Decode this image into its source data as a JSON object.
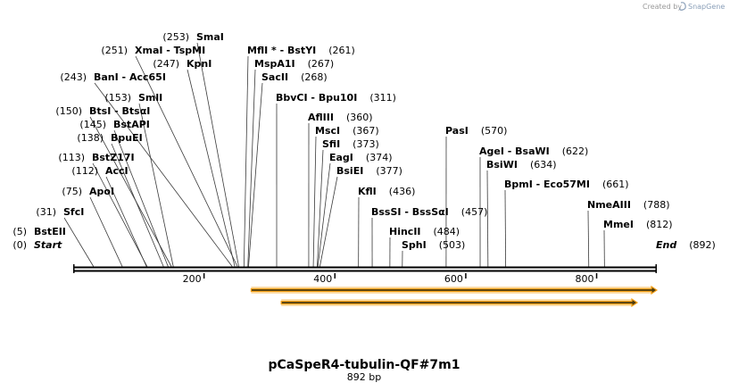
{
  "credit": {
    "prefix": "Created by",
    "brand": "SnapGene"
  },
  "map": {
    "title": "pCaSpeR4-tubulin-QF#7m1",
    "length_label": "892 bp",
    "total_bp": 892,
    "axis_ticks": [
      {
        "value": 200,
        "label": "200"
      },
      {
        "value": 400,
        "label": "400"
      },
      {
        "value": 600,
        "label": "600"
      },
      {
        "value": 800,
        "label": "800"
      }
    ],
    "features": [
      {
        "name": "feature-arrow-1",
        "start": 272,
        "end": 892,
        "color": "#f6a21a"
      },
      {
        "name": "feature-arrow-2",
        "start": 318,
        "end": 862,
        "color": "#f6a21a"
      }
    ],
    "sites": [
      {
        "id": "start",
        "pos": "(0)",
        "bp": 0,
        "name": "Start",
        "italic": true,
        "line_to": null
      },
      {
        "id": "bsteii",
        "pos": "(5)",
        "bp": 5,
        "name": "BstEII",
        "line_to": null
      },
      {
        "id": "sfci",
        "pos": "(31)",
        "bp": 31,
        "name": "SfcI"
      },
      {
        "id": "apoi",
        "pos": "(75)",
        "bp": 75,
        "name": "ApoI"
      },
      {
        "id": "acci",
        "pos": "(112)",
        "bp": 112,
        "name": "AccI"
      },
      {
        "id": "bstz17i",
        "pos": "(113)",
        "bp": 113,
        "name": "BstZ17I"
      },
      {
        "id": "bpuei",
        "pos": "(138)",
        "bp": 138,
        "name": "BpuEI"
      },
      {
        "id": "bstapi",
        "pos": "(145)",
        "bp": 145,
        "name": "BstAPI"
      },
      {
        "id": "btsi",
        "pos": "(150)",
        "bp": 150,
        "name": "BtsI  -  BtsαI"
      },
      {
        "id": "smli",
        "pos": "(153)",
        "bp": 153,
        "name": "SmlI"
      },
      {
        "id": "bani",
        "pos": "(243)",
        "bp": 243,
        "name": "BanI  -  Acc65I"
      },
      {
        "id": "kpni",
        "pos": "(247)",
        "bp": 247,
        "name": "KpnI"
      },
      {
        "id": "xmai",
        "pos": "(251)",
        "bp": 251,
        "name": "XmaI  -  TspMI"
      },
      {
        "id": "smai",
        "pos": "(253)",
        "bp": 253,
        "name": "SmaI"
      },
      {
        "id": "mfli",
        "pos": "(261)",
        "bp": 261,
        "name": "MflI * - BstYI",
        "pos_right": true
      },
      {
        "id": "mspa1i",
        "pos": "(267)",
        "bp": 267,
        "name": "MspA1I",
        "pos_right": true
      },
      {
        "id": "sacii",
        "pos": "(268)",
        "bp": 268,
        "name": "SacII",
        "pos_right": true
      },
      {
        "id": "bbvci",
        "pos": "(311)",
        "bp": 311,
        "name": "BbvCI  -  Bpu10I",
        "pos_right": true
      },
      {
        "id": "afliii",
        "pos": "(360)",
        "bp": 360,
        "name": "AflIII",
        "pos_right": true
      },
      {
        "id": "msci",
        "pos": "(367)",
        "bp": 367,
        "name": "MscI",
        "pos_right": true
      },
      {
        "id": "sfii",
        "pos": "(373)",
        "bp": 373,
        "name": "SfiI",
        "pos_right": true
      },
      {
        "id": "eagi",
        "pos": "(374)",
        "bp": 374,
        "name": "EagI",
        "pos_right": true
      },
      {
        "id": "bsiei",
        "pos": "(377)",
        "bp": 377,
        "name": "BsiEI",
        "pos_right": true
      },
      {
        "id": "kfli",
        "pos": "(436)",
        "bp": 436,
        "name": "KflI",
        "pos_right": true
      },
      {
        "id": "bsssi",
        "pos": "(457)",
        "bp": 457,
        "name": "BssSI  -  BssSαI",
        "pos_right": true
      },
      {
        "id": "hincii",
        "pos": "(484)",
        "bp": 484,
        "name": "HincII",
        "pos_right": true
      },
      {
        "id": "sphi",
        "pos": "(503)",
        "bp": 503,
        "name": "SphI",
        "pos_right": true
      },
      {
        "id": "pasi",
        "pos": "(570)",
        "bp": 570,
        "name": "PasI",
        "pos_right": true
      },
      {
        "id": "agei",
        "pos": "(622)",
        "bp": 622,
        "name": "AgeI  -  BsaWI",
        "pos_right": true
      },
      {
        "id": "bsiwi",
        "pos": "(634)",
        "bp": 634,
        "name": "BsiWI",
        "pos_right": true
      },
      {
        "id": "bpmi",
        "pos": "(661)",
        "bp": 661,
        "name": "BpmI  -  Eco57MI",
        "pos_right": true
      },
      {
        "id": "nmeaiii",
        "pos": "(788)",
        "bp": 788,
        "name": "NmeAIII",
        "pos_right": true
      },
      {
        "id": "mmei",
        "pos": "(812)",
        "bp": 812,
        "name": "MmeI",
        "pos_right": true
      },
      {
        "id": "end",
        "pos": "(892)",
        "bp": 892,
        "name": "End",
        "italic": true,
        "pos_right": true,
        "line_to": null
      }
    ]
  }
}
